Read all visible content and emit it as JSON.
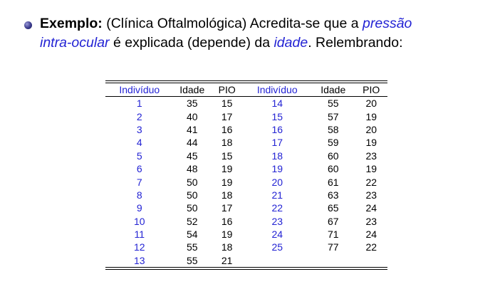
{
  "intro": {
    "label": "Exemplo:",
    "part1": " (Clínica Oftalmológica) Acredita-se que a ",
    "term1": "pressão",
    "term1b": "intra-ocular",
    "part2": " é explicada (depende) da ",
    "term2": "idade",
    "part3": ". Relembrando:"
  },
  "table": {
    "headers": [
      "Indivíduo",
      "Idade",
      "PIO",
      "Indivíduo",
      "Idade",
      "PIO"
    ],
    "rows": [
      [
        "1",
        "35",
        "15",
        "14",
        "55",
        "20"
      ],
      [
        "2",
        "40",
        "17",
        "15",
        "57",
        "19"
      ],
      [
        "3",
        "41",
        "16",
        "16",
        "58",
        "20"
      ],
      [
        "4",
        "44",
        "18",
        "17",
        "59",
        "19"
      ],
      [
        "5",
        "45",
        "15",
        "18",
        "60",
        "23"
      ],
      [
        "6",
        "48",
        "19",
        "19",
        "60",
        "19"
      ],
      [
        "7",
        "50",
        "19",
        "20",
        "61",
        "22"
      ],
      [
        "8",
        "50",
        "18",
        "21",
        "63",
        "23"
      ],
      [
        "9",
        "50",
        "17",
        "22",
        "65",
        "24"
      ],
      [
        "10",
        "52",
        "16",
        "23",
        "67",
        "23"
      ],
      [
        "11",
        "54",
        "19",
        "24",
        "71",
        "24"
      ],
      [
        "12",
        "55",
        "18",
        "25",
        "77",
        "22"
      ],
      [
        "13",
        "55",
        "21",
        "",
        "",
        ""
      ]
    ]
  },
  "colors": {
    "accent": "#2323d4",
    "text": "#000000"
  }
}
